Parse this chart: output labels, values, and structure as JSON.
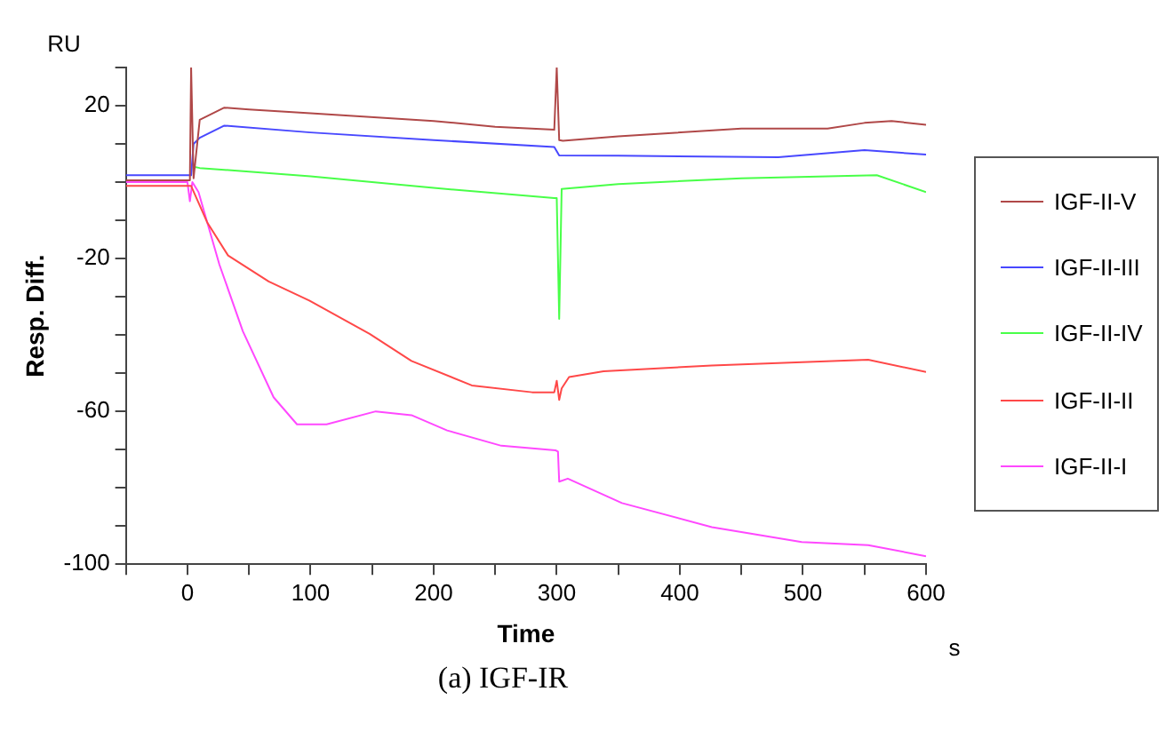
{
  "chart_data": {
    "type": "line",
    "xlabel": "Time",
    "ylabel": "Resp. Diff.",
    "annotations": [
      "RU",
      "s",
      "(a) IGF-IR"
    ],
    "xlim": [
      -50,
      600
    ],
    "xticks": [
      {
        "value": -50,
        "label": null
      },
      0,
      {
        "value": 50,
        "label": null
      },
      100,
      {
        "value": 150,
        "label": null
      },
      200,
      {
        "value": 250,
        "label": null
      },
      300,
      {
        "value": 350,
        "label": null
      },
      400,
      {
        "value": 450,
        "label": null
      },
      500,
      {
        "value": 550,
        "label": null
      },
      600
    ],
    "ylim": [
      -100,
      30
    ],
    "yticks": [
      -100,
      {
        "value": -90,
        "label": null
      },
      {
        "value": -80,
        "label": null
      },
      {
        "value": -70,
        "label": null
      },
      -60,
      {
        "value": -50,
        "label": null
      },
      {
        "value": -40,
        "label": null
      },
      {
        "value": -30,
        "label": null
      },
      -20,
      {
        "value": -10,
        "label": null
      },
      {
        "value": 0,
        "label": null
      },
      {
        "value": 10,
        "label": null
      },
      20,
      {
        "value": 30,
        "label": null
      }
    ],
    "grid": false,
    "legend": "right",
    "marker": "none",
    "line_style": "solid",
    "series": [
      {
        "name": "IGF-II-V",
        "color": "#b04848",
        "x": [
          -50,
          0,
          2,
          3,
          5,
          10,
          30,
          50,
          100,
          200,
          250,
          298,
          300,
          302,
          305,
          350,
          450,
          520,
          550,
          572,
          600
        ],
        "values": [
          0.5,
          0.5,
          0.5,
          30,
          1,
          16.3,
          19.5,
          19,
          18,
          16,
          14.5,
          13.7,
          30,
          11,
          10.8,
          12,
          14,
          14,
          15.5,
          16,
          15
        ]
      },
      {
        "name": "IGF-II-III",
        "color": "#4848ff",
        "x": [
          -50,
          0,
          3,
          5,
          10,
          30,
          100,
          200,
          298,
          302,
          350,
          480,
          550,
          600
        ],
        "values": [
          1.8,
          1.8,
          1.8,
          10,
          11.6,
          14.8,
          13,
          11,
          9.2,
          7,
          6.9,
          6.5,
          8.4,
          7.2
        ]
      },
      {
        "name": "IGF-II-IV",
        "color": "#48ff48",
        "x": [
          5,
          10,
          100,
          200,
          298,
          300,
          302,
          304,
          350,
          450,
          560,
          600
        ],
        "values": [
          4,
          3.7,
          1.5,
          -1.5,
          -4.2,
          -4.2,
          -35.8,
          -1.8,
          -0.5,
          1,
          1.8,
          -2.6
        ]
      },
      {
        "name": "IGF-II-II",
        "color": "#ff4848",
        "x": [
          -50,
          0,
          3,
          16,
          33,
          66,
          99,
          148,
          182,
          231,
          280,
          298,
          300,
          302,
          304,
          310,
          338,
          426,
          553,
          600
        ],
        "values": [
          -1,
          -1,
          -1,
          -10.5,
          -19.2,
          -26,
          -31,
          -39.7,
          -46.8,
          -53.2,
          -55,
          -55,
          -52,
          -57,
          -54,
          -51,
          -49.5,
          -48,
          -46.5,
          -49.7
        ]
      },
      {
        "name": "IGF-II-I",
        "color": "#ff48ff",
        "x": [
          -50,
          0,
          2,
          4,
          9,
          26,
          45,
          70,
          89,
          113,
          153,
          182,
          211,
          255,
          299,
          301,
          302,
          309,
          353,
          426,
          499,
          553,
          600
        ],
        "values": [
          0,
          0,
          -5,
          0,
          -2.6,
          -21.6,
          -39,
          -56.3,
          -63.4,
          -63.4,
          -60,
          -61,
          -65,
          -69,
          -70.2,
          -70.5,
          -78.4,
          -77.6,
          -84,
          -90.3,
          -94.2,
          -95,
          -97.9
        ]
      }
    ]
  }
}
